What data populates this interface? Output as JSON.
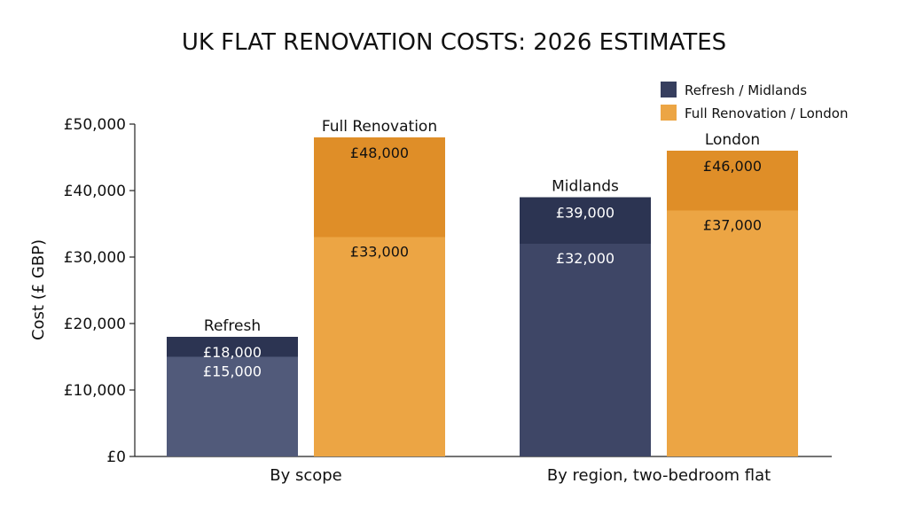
{
  "chart_data": {
    "type": "bar",
    "title": "UK FLAT RENOVATION COSTS: 2026 ESTIMATES",
    "ylabel": "Cost (£ GBP)",
    "xlabel": "",
    "ylim": [
      0,
      50000
    ],
    "yticks": [
      0,
      10000,
      20000,
      30000,
      40000,
      50000
    ],
    "ytick_labels": [
      "£0",
      "£10,000",
      "£20,000",
      "£30,000",
      "£40,000",
      "£50,000"
    ],
    "groups": [
      "By scope",
      "By region, two-bedroom flat"
    ],
    "legend": {
      "placement": "top-right",
      "entries": [
        {
          "label": "Refresh / Midlands",
          "color": "#363e5e"
        },
        {
          "label": "Full Renovation / London",
          "color": "#eca544"
        }
      ]
    },
    "bars": [
      {
        "group": 0,
        "name": "Refresh",
        "low": 15000,
        "high": 18000,
        "low_label": "£15,000",
        "high_label": "£18,000",
        "color_low": "#515a7a",
        "color_high": "#2c3452",
        "text_color": "#ffffff"
      },
      {
        "group": 0,
        "name": "Full Renovation",
        "low": 33000,
        "high": 48000,
        "low_label": "£33,000",
        "high_label": "£48,000",
        "color_low": "#eca544",
        "color_high": "#df8e28",
        "text_color": "#111111"
      },
      {
        "group": 1,
        "name": "Midlands",
        "low": 32000,
        "high": 39000,
        "low_label": "£32,000",
        "high_label": "£39,000",
        "color_low": "#3e4666",
        "color_high": "#2c3452",
        "text_color": "#ffffff"
      },
      {
        "group": 1,
        "name": "London",
        "low": 37000,
        "high": 46000,
        "low_label": "£37,000",
        "high_label": "£46,000",
        "color_low": "#eca544",
        "color_high": "#df8e28",
        "text_color": "#111111"
      }
    ],
    "grid": false
  }
}
